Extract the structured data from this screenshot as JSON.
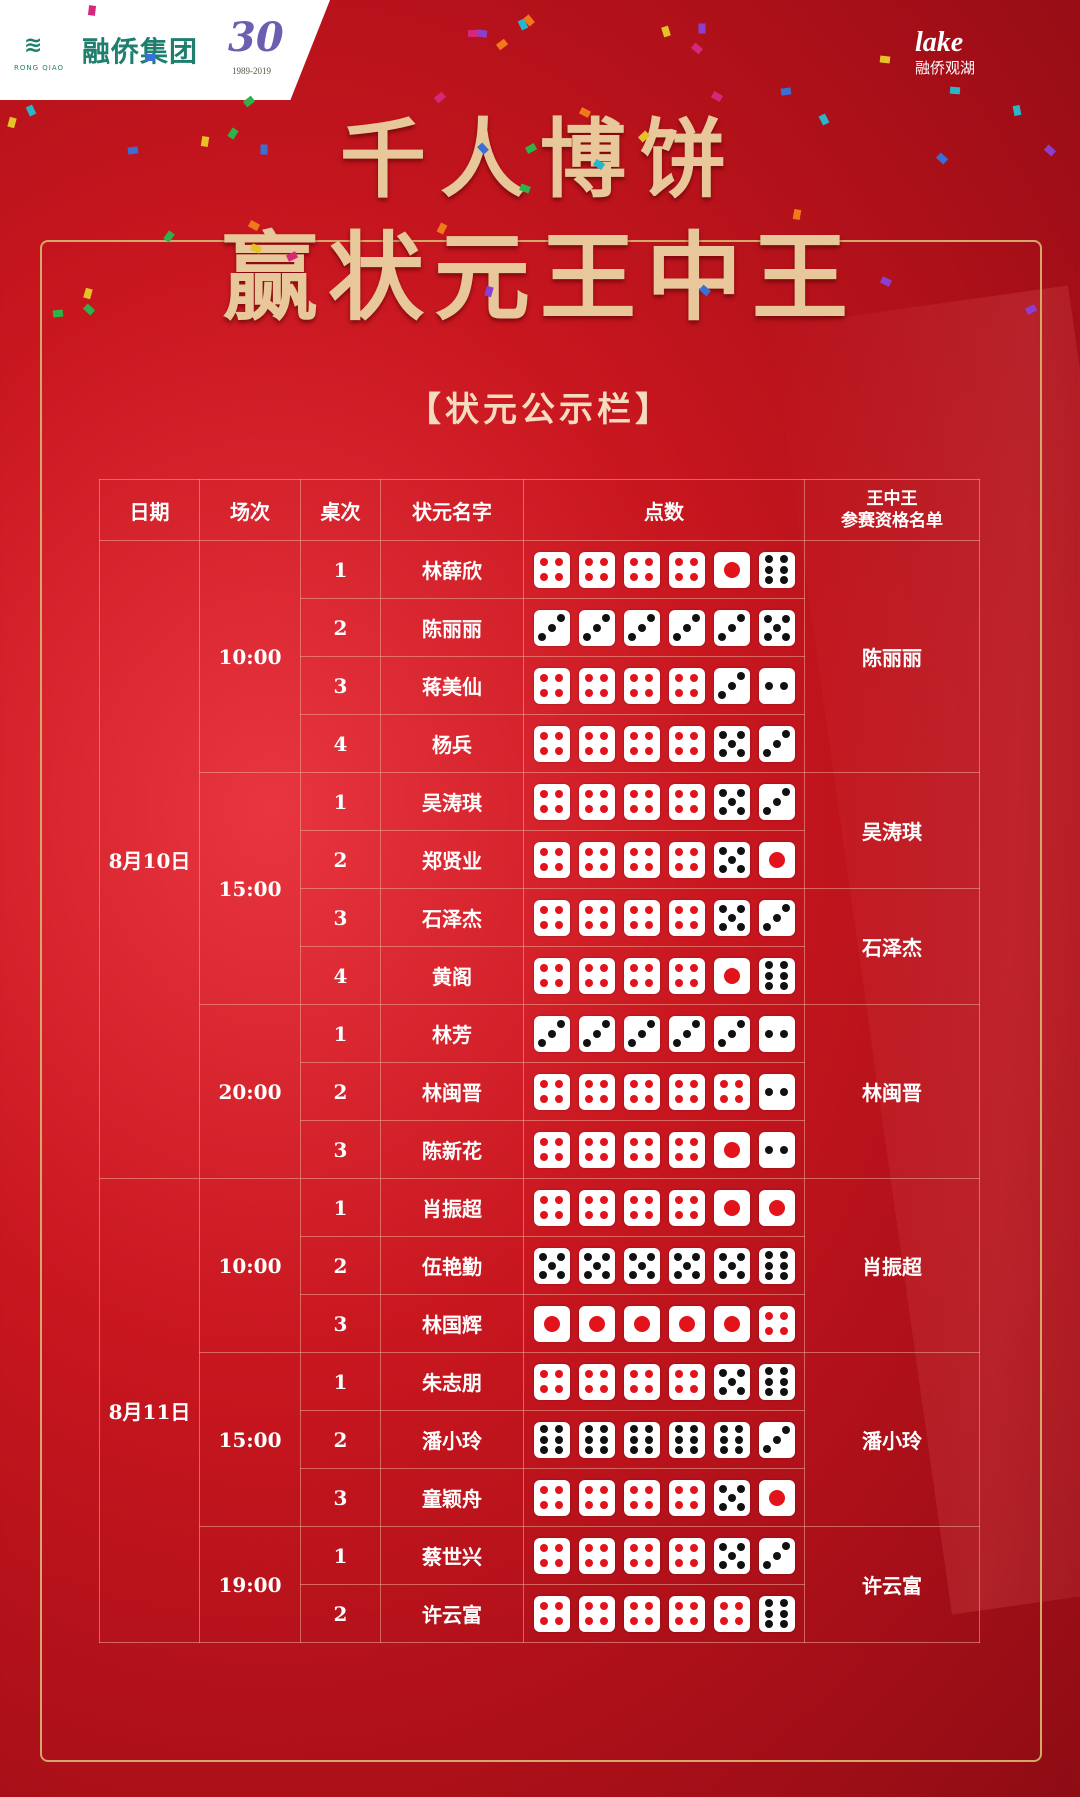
{
  "branding": {
    "left_logo_mark": "≋",
    "left_logo_sub": "RONG QIAO",
    "left_logo_name": "融侨集团",
    "anniversary": "30",
    "anniversary_years": "1989-2019",
    "right_logo_en": "lake",
    "right_logo_cn": "融侨观湖"
  },
  "title_line1": "千人博饼",
  "title_line2": "赢状元王中王",
  "subtitle": "【状元公示栏】",
  "colors": {
    "background": "#c8161f",
    "gold": "#d4a76a",
    "pip_red": "#e3131c",
    "pip_black": "#111111"
  },
  "table": {
    "headers": [
      "日期",
      "场次",
      "桌次",
      "状元名字",
      "点数",
      "王中王\n参赛资格名单"
    ],
    "dates": [
      {
        "label": "8月10日",
        "rows": 11
      },
      {
        "label": "8月11日",
        "rows": 8
      }
    ],
    "sessions": [
      {
        "label": "10:00",
        "rows": 4
      },
      {
        "label": "15:00",
        "rows": 4
      },
      {
        "label": "20:00",
        "rows": 3
      },
      {
        "label": "10:00",
        "rows": 3
      },
      {
        "label": "15:00",
        "rows": 3
      },
      {
        "label": "19:00",
        "rows": 2
      }
    ],
    "qualifiers": [
      {
        "label": "陈丽丽",
        "rows": 4
      },
      {
        "label": "吴涛琪",
        "rows": 2
      },
      {
        "label": "石泽杰",
        "rows": 2
      },
      {
        "label": "林闽晋",
        "rows": 3
      },
      {
        "label": "肖振超",
        "rows": 3
      },
      {
        "label": "潘小玲",
        "rows": 3
      },
      {
        "label": "许云富",
        "rows": 2
      }
    ],
    "rows": [
      {
        "table": "1",
        "name": "林薛欣",
        "dice": [
          4,
          4,
          4,
          4,
          1,
          6
        ]
      },
      {
        "table": "2",
        "name": "陈丽丽",
        "dice": [
          3,
          3,
          3,
          3,
          3,
          5
        ]
      },
      {
        "table": "3",
        "name": "蒋美仙",
        "dice": [
          4,
          4,
          4,
          4,
          3,
          2
        ]
      },
      {
        "table": "4",
        "name": "杨兵",
        "dice": [
          4,
          4,
          4,
          4,
          5,
          3
        ]
      },
      {
        "table": "1",
        "name": "吴涛琪",
        "dice": [
          4,
          4,
          4,
          4,
          5,
          3
        ]
      },
      {
        "table": "2",
        "name": "郑贤业",
        "dice": [
          4,
          4,
          4,
          4,
          5,
          1
        ]
      },
      {
        "table": "3",
        "name": "石泽杰",
        "dice": [
          4,
          4,
          4,
          4,
          5,
          3
        ]
      },
      {
        "table": "4",
        "name": "黄阁",
        "dice": [
          4,
          4,
          4,
          4,
          1,
          6
        ]
      },
      {
        "table": "1",
        "name": "林芳",
        "dice": [
          3,
          3,
          3,
          3,
          3,
          2
        ]
      },
      {
        "table": "2",
        "name": "林闽晋",
        "dice": [
          4,
          4,
          4,
          4,
          4,
          2
        ]
      },
      {
        "table": "3",
        "name": "陈新花",
        "dice": [
          4,
          4,
          4,
          4,
          1,
          2
        ]
      },
      {
        "table": "1",
        "name": "肖振超",
        "dice": [
          4,
          4,
          4,
          4,
          1,
          1
        ]
      },
      {
        "table": "2",
        "name": "伍艳勤",
        "dice": [
          5,
          5,
          5,
          5,
          5,
          6
        ]
      },
      {
        "table": "3",
        "name": "林国辉",
        "dice": [
          1,
          1,
          1,
          1,
          1,
          4
        ]
      },
      {
        "table": "1",
        "name": "朱志朋",
        "dice": [
          4,
          4,
          4,
          4,
          5,
          6
        ]
      },
      {
        "table": "2",
        "name": "潘小玲",
        "dice": [
          6,
          6,
          6,
          6,
          6,
          3
        ]
      },
      {
        "table": "3",
        "name": "童颖舟",
        "dice": [
          4,
          4,
          4,
          4,
          5,
          1
        ]
      },
      {
        "table": "1",
        "name": "蔡世兴",
        "dice": [
          4,
          4,
          4,
          4,
          5,
          3
        ]
      },
      {
        "table": "2",
        "name": "许云富",
        "dice": [
          4,
          4,
          4,
          4,
          4,
          6
        ]
      }
    ]
  }
}
